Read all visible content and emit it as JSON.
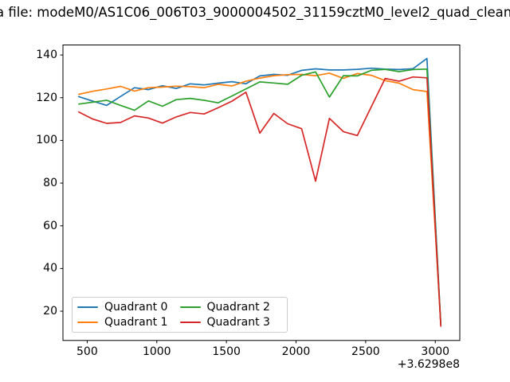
{
  "chart_data": {
    "type": "line",
    "title": "a file: modeM0/AS1C06_006T03_9000004502_31159cztM0_level2_quad_clean",
    "xlabel": "",
    "ylabel": "",
    "x_offset_label": "+3.6298e8",
    "xlim": [
      326,
      3176
    ],
    "ylim": [
      6.3,
      144.7
    ],
    "x_ticks": [
      500,
      1000,
      1500,
      2000,
      2500,
      3000
    ],
    "y_ticks": [
      20,
      40,
      60,
      80,
      100,
      120,
      140
    ],
    "grid": false,
    "legend_position": "lower left",
    "x": [
      440,
      540,
      640,
      740,
      840,
      940,
      1040,
      1140,
      1240,
      1340,
      1440,
      1540,
      1640,
      1740,
      1840,
      1940,
      2040,
      2140,
      2240,
      2340,
      2440,
      2540,
      2640,
      2740,
      2840,
      2940,
      3040
    ],
    "series": [
      {
        "name": "Quadrant 0",
        "color": "#1f77b4",
        "values": [
          120.5,
          118.4,
          116.4,
          120.6,
          124.7,
          123.8,
          125.6,
          124.3,
          126.5,
          126.0,
          126.8,
          127.5,
          126.5,
          130.2,
          130.9,
          130.5,
          132.8,
          133.5,
          133.0,
          133.0,
          133.3,
          133.8,
          133.4,
          133.2,
          133.6,
          138.4,
          13.5
        ]
      },
      {
        "name": "Quadrant 1",
        "color": "#ff7f0e",
        "values": [
          121.6,
          123.0,
          124.1,
          125.3,
          123.1,
          124.7,
          125.0,
          125.4,
          125.2,
          124.7,
          126.3,
          125.5,
          127.7,
          129.2,
          130.3,
          130.8,
          130.9,
          130.3,
          131.5,
          129.1,
          131.3,
          130.5,
          128.0,
          126.8,
          123.8,
          122.9,
          13.5
        ]
      },
      {
        "name": "Quadrant 2",
        "color": "#2ca02c",
        "values": [
          117.0,
          117.9,
          118.8,
          116.4,
          114.1,
          118.5,
          116.0,
          119.1,
          119.7,
          118.8,
          117.6,
          120.8,
          124.1,
          127.4,
          126.9,
          126.3,
          130.5,
          132.1,
          120.3,
          130.3,
          130.2,
          132.8,
          133.3,
          132.2,
          133.2,
          133.4,
          13.5
        ]
      },
      {
        "name": "Quadrant 3",
        "color": "#d62728",
        "values": [
          113.3,
          110.0,
          108.0,
          108.4,
          111.5,
          110.5,
          108.1,
          111.0,
          113.1,
          112.4,
          115.3,
          118.4,
          122.6,
          103.4,
          112.6,
          107.8,
          105.5,
          80.9,
          110.3,
          104.1,
          102.3,
          115.7,
          129.0,
          127.7,
          129.7,
          129.3,
          13.0
        ]
      }
    ]
  }
}
